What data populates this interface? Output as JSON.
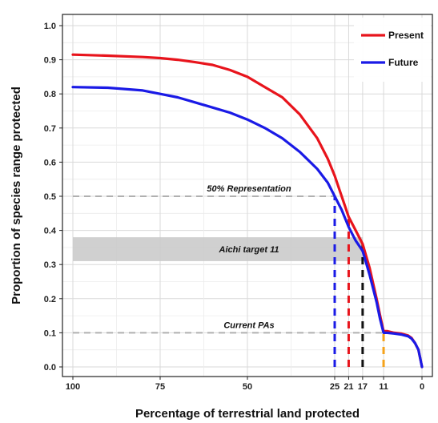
{
  "chart_data": {
    "type": "line",
    "title": "",
    "xlabel": "Percentage of terrestrial land protected",
    "ylabel": "Proportion of species range protected",
    "x_reversed": true,
    "xlim": [
      100,
      0
    ],
    "ylim": [
      0,
      1.0
    ],
    "x_ticks": [
      100,
      75,
      50,
      25,
      21,
      17,
      11,
      0
    ],
    "x_tick_labels": [
      "100",
      "75",
      "50",
      "25",
      "21",
      "17",
      "11",
      "0"
    ],
    "y_ticks": [
      0.0,
      0.1,
      0.2,
      0.3,
      0.4,
      0.5,
      0.6,
      0.7,
      0.8,
      0.9,
      1.0
    ],
    "y_tick_labels": [
      "0.0",
      "0.1",
      "0.2",
      "0.3",
      "0.4",
      "0.5",
      "0.6",
      "0.7",
      "0.8",
      "0.9",
      "1.0"
    ],
    "grid": true,
    "legend_position": "top-right",
    "series": [
      {
        "name": "Present",
        "color": "#e8141c",
        "x": [
          100,
          90,
          80,
          75,
          70,
          65,
          60,
          55,
          50,
          45,
          40,
          35,
          30,
          27,
          25,
          23,
          21,
          19,
          17,
          15,
          13,
          12,
          11,
          10,
          8,
          6,
          4,
          3,
          2,
          1,
          0
        ],
        "y": [
          0.915,
          0.912,
          0.908,
          0.905,
          0.9,
          0.893,
          0.885,
          0.87,
          0.85,
          0.82,
          0.79,
          0.74,
          0.67,
          0.61,
          0.56,
          0.5,
          0.44,
          0.4,
          0.36,
          0.29,
          0.2,
          0.15,
          0.105,
          0.105,
          0.1,
          0.098,
          0.092,
          0.085,
          0.07,
          0.05,
          0.0
        ]
      },
      {
        "name": "Future",
        "color": "#1a1ae6",
        "x": [
          100,
          90,
          80,
          75,
          70,
          65,
          60,
          55,
          50,
          45,
          40,
          35,
          30,
          27,
          25,
          23,
          21,
          19,
          17,
          15,
          13,
          12,
          11,
          10,
          8,
          6,
          4,
          3,
          2,
          1,
          0
        ],
        "y": [
          0.82,
          0.818,
          0.81,
          0.8,
          0.79,
          0.775,
          0.76,
          0.745,
          0.725,
          0.7,
          0.67,
          0.63,
          0.58,
          0.54,
          0.5,
          0.46,
          0.41,
          0.37,
          0.34,
          0.27,
          0.19,
          0.14,
          0.1,
          0.1,
          0.098,
          0.095,
          0.09,
          0.083,
          0.07,
          0.05,
          0.0
        ]
      }
    ],
    "reference_lines": [
      {
        "label": "50% Representation",
        "y": 0.5,
        "x_from": 100,
        "x_to": 25,
        "style": "dashed",
        "color": "#b0b0b0"
      },
      {
        "label": "Current PAs",
        "y": 0.1,
        "x_from": 100,
        "x_to": 11,
        "style": "dashed",
        "color": "#b0b0b0"
      }
    ],
    "bands": [
      {
        "label": "Aichi target 11",
        "y_from": 0.31,
        "y_to": 0.38,
        "x_from": 100,
        "x_to": 17,
        "color": "#c8c8c8"
      }
    ],
    "vertical_markers": [
      {
        "x": 25,
        "y_to": 0.5,
        "color": "#1a1ae6"
      },
      {
        "x": 21,
        "y_to": 0.44,
        "color": "#e8141c"
      },
      {
        "x": 17,
        "y_to": 0.36,
        "color": "#111111"
      },
      {
        "x": 11,
        "y_to": 0.1,
        "color": "#f5a21b"
      }
    ]
  }
}
